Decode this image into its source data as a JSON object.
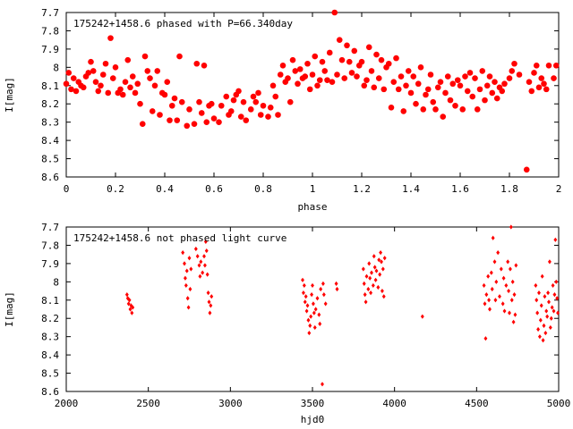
{
  "chart_data": [
    {
      "type": "scatter",
      "title": "175242+1458.6 phased with P=66.340day",
      "xlabel": "phase",
      "ylabel": "I[mag]",
      "xlim": [
        0,
        2
      ],
      "ylim": [
        7.7,
        8.6
      ],
      "y_inverted": true,
      "xticks": [
        "0",
        "0.2",
        "0.4",
        "0.6",
        "0.8",
        "1",
        "1.2",
        "1.4",
        "1.6",
        "1.8",
        "2"
      ],
      "yticks": [
        "7.7",
        "7.8",
        "7.9",
        "8",
        "8.1",
        "8.2",
        "8.3",
        "8.4",
        "8.5",
        "8.6"
      ],
      "marker_color": "#ff0000",
      "marker": "filled-circle",
      "points": [
        [
          0.0,
          8.09
        ],
        [
          0.01,
          8.03
        ],
        [
          0.02,
          8.12
        ],
        [
          0.03,
          8.06
        ],
        [
          0.04,
          8.13
        ],
        [
          0.05,
          8.08
        ],
        [
          0.06,
          8.1
        ],
        [
          0.07,
          8.11
        ],
        [
          0.08,
          8.05
        ],
        [
          0.09,
          8.03
        ],
        [
          0.1,
          7.97
        ],
        [
          0.11,
          8.02
        ],
        [
          0.12,
          8.08
        ],
        [
          0.13,
          8.13
        ],
        [
          0.14,
          8.1
        ],
        [
          0.15,
          8.04
        ],
        [
          0.16,
          7.98
        ],
        [
          0.17,
          8.14
        ],
        [
          0.18,
          7.84
        ],
        [
          0.19,
          8.06
        ],
        [
          0.2,
          8.0
        ],
        [
          0.21,
          8.14
        ],
        [
          0.22,
          8.12
        ],
        [
          0.23,
          8.15
        ],
        [
          0.24,
          8.08
        ],
        [
          0.25,
          7.96
        ],
        [
          0.26,
          8.11
        ],
        [
          0.27,
          8.05
        ],
        [
          0.28,
          8.14
        ],
        [
          0.29,
          8.09
        ],
        [
          0.3,
          8.2
        ],
        [
          0.31,
          8.31
        ],
        [
          0.32,
          7.94
        ],
        [
          0.33,
          8.02
        ],
        [
          0.34,
          8.06
        ],
        [
          0.35,
          8.24
        ],
        [
          0.36,
          8.1
        ],
        [
          0.37,
          8.02
        ],
        [
          0.38,
          8.26
        ],
        [
          0.39,
          8.14
        ],
        [
          0.4,
          8.15
        ],
        [
          0.41,
          8.08
        ],
        [
          0.42,
          8.29
        ],
        [
          0.43,
          8.21
        ],
        [
          0.44,
          8.17
        ],
        [
          0.45,
          8.29
        ],
        [
          0.46,
          7.94
        ],
        [
          0.47,
          8.19
        ],
        [
          0.49,
          8.32
        ],
        [
          0.5,
          8.23
        ],
        [
          0.52,
          8.31
        ],
        [
          0.53,
          7.98
        ],
        [
          0.54,
          8.19
        ],
        [
          0.55,
          8.25
        ],
        [
          0.56,
          7.99
        ],
        [
          0.57,
          8.3
        ],
        [
          0.58,
          8.21
        ],
        [
          0.59,
          8.2
        ],
        [
          0.6,
          8.28
        ],
        [
          0.62,
          8.3
        ],
        [
          0.63,
          8.21
        ],
        [
          0.65,
          8.16
        ],
        [
          0.66,
          8.26
        ],
        [
          0.67,
          8.24
        ],
        [
          0.68,
          8.18
        ],
        [
          0.69,
          8.15
        ],
        [
          0.7,
          8.13
        ],
        [
          0.71,
          8.27
        ],
        [
          0.72,
          8.19
        ],
        [
          0.73,
          8.29
        ],
        [
          0.75,
          8.23
        ],
        [
          0.76,
          8.16
        ],
        [
          0.77,
          8.19
        ],
        [
          0.78,
          8.14
        ],
        [
          0.79,
          8.26
        ],
        [
          0.8,
          8.21
        ],
        [
          0.82,
          8.27
        ],
        [
          0.83,
          8.22
        ],
        [
          0.84,
          8.1
        ],
        [
          0.85,
          8.16
        ],
        [
          0.86,
          8.26
        ],
        [
          0.87,
          8.04
        ],
        [
          0.88,
          7.99
        ],
        [
          0.89,
          8.08
        ],
        [
          0.9,
          8.06
        ],
        [
          0.91,
          8.19
        ],
        [
          0.92,
          7.96
        ],
        [
          0.93,
          8.02
        ],
        [
          0.94,
          8.09
        ],
        [
          0.95,
          8.01
        ],
        [
          0.96,
          8.06
        ],
        [
          0.97,
          8.05
        ],
        [
          0.98,
          7.98
        ],
        [
          0.99,
          8.12
        ],
        [
          1.0,
          8.04
        ],
        [
          1.01,
          7.94
        ],
        [
          1.02,
          8.1
        ],
        [
          1.03,
          8.07
        ],
        [
          1.04,
          7.97
        ],
        [
          1.05,
          8.02
        ],
        [
          1.06,
          8.07
        ],
        [
          1.07,
          7.92
        ],
        [
          1.08,
          8.08
        ],
        [
          1.09,
          7.7
        ],
        [
          1.1,
          8.04
        ],
        [
          1.11,
          7.85
        ],
        [
          1.12,
          7.96
        ],
        [
          1.13,
          8.06
        ],
        [
          1.14,
          7.88
        ],
        [
          1.15,
          7.97
        ],
        [
          1.16,
          8.03
        ],
        [
          1.17,
          7.91
        ],
        [
          1.18,
          8.05
        ],
        [
          1.19,
          7.99
        ],
        [
          1.2,
          7.97
        ],
        [
          1.21,
          8.1
        ],
        [
          1.22,
          8.07
        ],
        [
          1.23,
          7.89
        ],
        [
          1.24,
          8.02
        ],
        [
          1.25,
          8.11
        ],
        [
          1.26,
          7.93
        ],
        [
          1.27,
          8.06
        ],
        [
          1.28,
          7.96
        ],
        [
          1.29,
          8.12
        ],
        [
          1.3,
          8.0
        ],
        [
          1.31,
          7.98
        ],
        [
          1.32,
          8.22
        ],
        [
          1.33,
          8.08
        ],
        [
          1.34,
          7.95
        ],
        [
          1.35,
          8.12
        ],
        [
          1.36,
          8.05
        ],
        [
          1.37,
          8.24
        ],
        [
          1.38,
          8.1
        ],
        [
          1.39,
          8.02
        ],
        [
          1.4,
          8.14
        ],
        [
          1.41,
          8.05
        ],
        [
          1.42,
          8.2
        ],
        [
          1.43,
          8.09
        ],
        [
          1.44,
          8.0
        ],
        [
          1.45,
          8.23
        ],
        [
          1.46,
          8.15
        ],
        [
          1.47,
          8.12
        ],
        [
          1.48,
          8.04
        ],
        [
          1.49,
          8.19
        ],
        [
          1.5,
          8.23
        ],
        [
          1.51,
          8.11
        ],
        [
          1.52,
          8.08
        ],
        [
          1.53,
          8.27
        ],
        [
          1.54,
          8.14
        ],
        [
          1.55,
          8.05
        ],
        [
          1.56,
          8.18
        ],
        [
          1.57,
          8.09
        ],
        [
          1.58,
          8.21
        ],
        [
          1.59,
          8.07
        ],
        [
          1.6,
          8.1
        ],
        [
          1.61,
          8.23
        ],
        [
          1.62,
          8.05
        ],
        [
          1.63,
          8.13
        ],
        [
          1.64,
          8.03
        ],
        [
          1.65,
          8.16
        ],
        [
          1.66,
          8.06
        ],
        [
          1.67,
          8.23
        ],
        [
          1.68,
          8.12
        ],
        [
          1.69,
          8.02
        ],
        [
          1.7,
          8.18
        ],
        [
          1.71,
          8.1
        ],
        [
          1.72,
          8.05
        ],
        [
          1.73,
          8.14
        ],
        [
          1.74,
          8.08
        ],
        [
          1.75,
          8.17
        ],
        [
          1.76,
          8.11
        ],
        [
          1.77,
          8.13
        ],
        [
          1.78,
          8.09
        ],
        [
          1.8,
          8.06
        ],
        [
          1.81,
          8.02
        ],
        [
          1.82,
          7.98
        ],
        [
          1.84,
          8.04
        ],
        [
          1.87,
          8.56
        ],
        [
          1.88,
          8.08
        ],
        [
          1.89,
          8.13
        ],
        [
          1.9,
          8.03
        ],
        [
          1.91,
          7.99
        ],
        [
          1.92,
          8.11
        ],
        [
          1.93,
          8.06
        ],
        [
          1.94,
          8.09
        ],
        [
          1.95,
          8.12
        ],
        [
          1.96,
          7.99
        ],
        [
          1.98,
          8.06
        ],
        [
          1.99,
          7.99
        ]
      ]
    },
    {
      "type": "scatter",
      "title": "175242+1458.6 not phased light curve",
      "xlabel": "hjd0",
      "ylabel": "I[mag]",
      "xlim": [
        2000,
        5000
      ],
      "ylim": [
        7.7,
        8.6
      ],
      "y_inverted": true,
      "xticks": [
        "2000",
        "2500",
        "3000",
        "3500",
        "4000",
        "4500",
        "5000"
      ],
      "yticks": [
        "7.7",
        "7.8",
        "7.9",
        "8",
        "8.1",
        "8.2",
        "8.3",
        "8.4",
        "8.5",
        "8.6"
      ],
      "marker_color": "#ff0000",
      "marker": "small-diamond",
      "points": [
        [
          2370,
          8.07
        ],
        [
          2375,
          8.09
        ],
        [
          2380,
          8.12
        ],
        [
          2385,
          8.1
        ],
        [
          2390,
          8.15
        ],
        [
          2395,
          8.13
        ],
        [
          2400,
          8.17
        ],
        [
          2405,
          8.14
        ],
        [
          2710,
          7.84
        ],
        [
          2720,
          7.9
        ],
        [
          2725,
          7.98
        ],
        [
          2730,
          8.02
        ],
        [
          2735,
          7.94
        ],
        [
          2740,
          8.09
        ],
        [
          2745,
          8.14
        ],
        [
          2750,
          7.87
        ],
        [
          2755,
          8.04
        ],
        [
          2760,
          7.93
        ],
        [
          2790,
          7.82
        ],
        [
          2800,
          7.86
        ],
        [
          2810,
          7.91
        ],
        [
          2815,
          7.97
        ],
        [
          2820,
          7.89
        ],
        [
          2830,
          7.95
        ],
        [
          2840,
          7.86
        ],
        [
          2845,
          7.91
        ],
        [
          2850,
          7.78
        ],
        [
          2855,
          7.83
        ],
        [
          2860,
          7.96
        ],
        [
          2865,
          8.06
        ],
        [
          2870,
          8.11
        ],
        [
          2875,
          8.17
        ],
        [
          2880,
          8.13
        ],
        [
          2885,
          8.08
        ],
        [
          3440,
          7.99
        ],
        [
          3445,
          8.06
        ],
        [
          3450,
          8.02
        ],
        [
          3455,
          8.11
        ],
        [
          3460,
          8.08
        ],
        [
          3465,
          8.16
        ],
        [
          3470,
          8.13
        ],
        [
          3475,
          8.21
        ],
        [
          3480,
          8.28
        ],
        [
          3485,
          8.24
        ],
        [
          3490,
          8.19
        ],
        [
          3495,
          8.07
        ],
        [
          3500,
          8.02
        ],
        [
          3505,
          8.12
        ],
        [
          3510,
          8.17
        ],
        [
          3515,
          8.25
        ],
        [
          3520,
          8.15
        ],
        [
          3530,
          8.09
        ],
        [
          3540,
          8.18
        ],
        [
          3545,
          8.23
        ],
        [
          3550,
          8.04
        ],
        [
          3560,
          8.56
        ],
        [
          3565,
          8.01
        ],
        [
          3570,
          8.07
        ],
        [
          3580,
          8.12
        ],
        [
          3645,
          8.01
        ],
        [
          3650,
          8.04
        ],
        [
          3810,
          7.93
        ],
        [
          3815,
          8.01
        ],
        [
          3820,
          8.07
        ],
        [
          3825,
          8.11
        ],
        [
          3830,
          7.97
        ],
        [
          3840,
          8.04
        ],
        [
          3845,
          7.9
        ],
        [
          3850,
          7.98
        ],
        [
          3855,
          8.06
        ],
        [
          3860,
          7.95
        ],
        [
          3870,
          8.02
        ],
        [
          3875,
          7.86
        ],
        [
          3880,
          7.92
        ],
        [
          3885,
          7.99
        ],
        [
          3890,
          7.94
        ],
        [
          3900,
          8.03
        ],
        [
          3905,
          7.88
        ],
        [
          3910,
          7.96
        ],
        [
          3915,
          7.84
        ],
        [
          3920,
          7.89
        ],
        [
          3925,
          8.05
        ],
        [
          3930,
          7.93
        ],
        [
          3935,
          8.08
        ],
        [
          3940,
          7.87
        ],
        [
          4170,
          8.19
        ],
        [
          4545,
          8.02
        ],
        [
          4550,
          8.12
        ],
        [
          4555,
          8.31
        ],
        [
          4560,
          8.07
        ],
        [
          4570,
          7.97
        ],
        [
          4575,
          8.1
        ],
        [
          4580,
          8.15
        ],
        [
          4590,
          7.95
        ],
        [
          4595,
          8.04
        ],
        [
          4600,
          7.76
        ],
        [
          4610,
          7.89
        ],
        [
          4615,
          8.1
        ],
        [
          4620,
          8.0
        ],
        [
          4630,
          7.84
        ],
        [
          4640,
          8.08
        ],
        [
          4650,
          7.93
        ],
        [
          4660,
          8.12
        ],
        [
          4665,
          7.98
        ],
        [
          4670,
          8.16
        ],
        [
          4680,
          8.02
        ],
        [
          4690,
          7.89
        ],
        [
          4695,
          8.05
        ],
        [
          4700,
          8.17
        ],
        [
          4705,
          7.93
        ],
        [
          4710,
          7.7
        ],
        [
          4715,
          8.1
        ],
        [
          4720,
          8.0
        ],
        [
          4725,
          8.22
        ],
        [
          4730,
          8.07
        ],
        [
          4735,
          8.18
        ],
        [
          4740,
          7.91
        ],
        [
          4860,
          8.02
        ],
        [
          4865,
          8.1
        ],
        [
          4870,
          8.17
        ],
        [
          4875,
          8.26
        ],
        [
          4880,
          8.06
        ],
        [
          4885,
          8.3
        ],
        [
          4890,
          8.21
        ],
        [
          4895,
          8.13
        ],
        [
          4900,
          7.97
        ],
        [
          4905,
          8.32
        ],
        [
          4910,
          8.24
        ],
        [
          4915,
          8.08
        ],
        [
          4920,
          8.28
        ],
        [
          4925,
          8.16
        ],
        [
          4930,
          8.19
        ],
        [
          4935,
          8.06
        ],
        [
          4940,
          8.11
        ],
        [
          4945,
          7.89
        ],
        [
          4950,
          8.25
        ],
        [
          4955,
          8.2
        ],
        [
          4960,
          8.14
        ],
        [
          4965,
          8.02
        ],
        [
          4970,
          8.16
        ],
        [
          4975,
          8.07
        ],
        [
          4980,
          7.77
        ],
        [
          4985,
          8.0
        ],
        [
          4990,
          8.09
        ],
        [
          4995,
          8.17
        ]
      ]
    }
  ]
}
